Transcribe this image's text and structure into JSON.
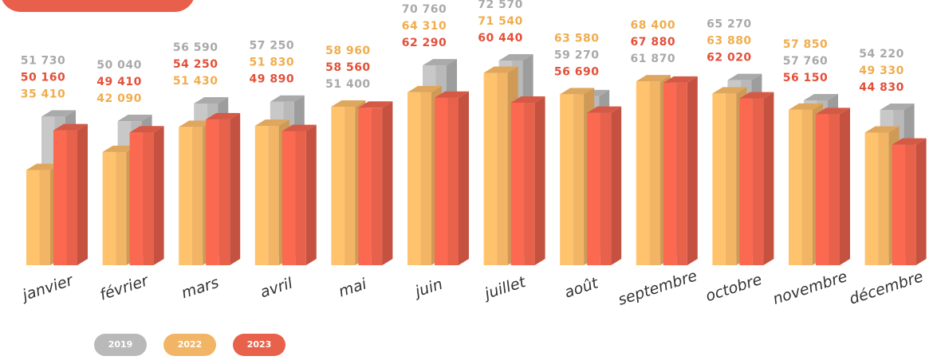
{
  "chart_data": {
    "type": "bar",
    "categories": [
      "janvier",
      "février",
      "mars",
      "avril",
      "mai",
      "juin",
      "juillet",
      "août",
      "septembre",
      "octobre",
      "novembre",
      "décembre"
    ],
    "series": [
      {
        "name": "2019",
        "color": "#b9b9b9",
        "values": [
          51730,
          50040,
          56590,
          57250,
          51400,
          70760,
          72570,
          59270,
          61870,
          65270,
          57760,
          54220
        ],
        "value_labels": [
          "51 730",
          "50 040",
          "56 590",
          "57 250",
          "51 400",
          "70 760",
          "72 570",
          "59 270",
          "61 870",
          "65 270",
          "57 760",
          "54 220"
        ]
      },
      {
        "name": "2022",
        "color": "#f2b565",
        "values": [
          35410,
          42090,
          51430,
          51830,
          58960,
          64310,
          71540,
          63580,
          68400,
          63880,
          57850,
          49330
        ],
        "value_labels": [
          "35 410",
          "42 090",
          "51 430",
          "51 830",
          "58 960",
          "64 310",
          "71 540",
          "63 580",
          "68 400",
          "63 880",
          "57 850",
          "49 330"
        ]
      },
      {
        "name": "2023",
        "color": "#e8614b",
        "values": [
          50160,
          49410,
          54250,
          49890,
          58560,
          62290,
          60440,
          56690,
          67880,
          62020,
          56150,
          44830
        ],
        "value_labels": [
          "50 160",
          "49 410",
          "54 250",
          "49 890",
          "58 560",
          "62 290",
          "60 440",
          "56 690",
          "67 880",
          "62 020",
          "56 150",
          "44 830"
        ]
      }
    ]
  }
}
